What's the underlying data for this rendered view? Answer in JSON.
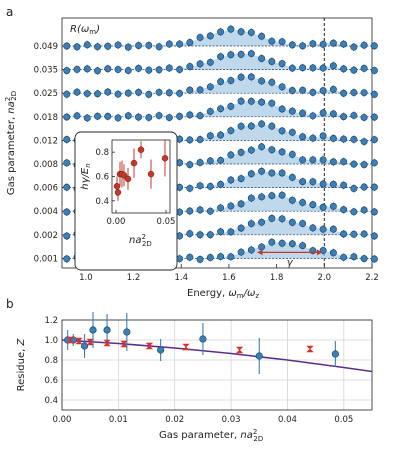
{
  "chart_data": [
    {
      "type": "line",
      "panel_label": "a",
      "xlabel_text": "Energy, ",
      "xlabel_math": "ωm/ωz",
      "ylabel": "Gas parameter, na²2D",
      "xlim": [
        0.9,
        2.2
      ],
      "xticks": [
        "1.0",
        "1.2",
        "1.4",
        "1.6",
        "1.8",
        "2.0",
        "2.2"
      ],
      "series_label": "R(ωm)",
      "offset_labels": [
        "0.049",
        "0.035",
        "0.025",
        "0.018",
        "0.012",
        "0.008",
        "0.006",
        "0.004",
        "0.002",
        "0.001"
      ],
      "peak_centers": [
        1.62,
        1.65,
        1.67,
        1.7,
        1.72,
        1.74,
        1.76,
        1.78,
        1.8,
        1.82
      ],
      "vline_x": 2.0,
      "gamma_label": "γ",
      "gamma_x": [
        1.72,
        1.99
      ],
      "colors": {
        "points": "#3b7fb4",
        "fill": "#a9cbe6",
        "edge": "#1f3f66",
        "gamma": "#c0392b"
      }
    },
    {
      "type": "scatter",
      "inset": true,
      "ylabel": "hγ/En",
      "xlabel": "na²2D",
      "xticks": [
        "0.00",
        "0.05"
      ],
      "yticks": [
        "0.4",
        "0.6",
        "0.8"
      ],
      "xlim": [
        -0.004,
        0.054
      ],
      "ylim": [
        0.3,
        0.9
      ],
      "points": [
        {
          "x": 0.001,
          "y": 0.52,
          "err": 0.08
        },
        {
          "x": 0.002,
          "y": 0.47,
          "err": 0.07
        },
        {
          "x": 0.004,
          "y": 0.62,
          "err": 0.1
        },
        {
          "x": 0.006,
          "y": 0.62,
          "err": 0.11
        },
        {
          "x": 0.008,
          "y": 0.61,
          "err": 0.09
        },
        {
          "x": 0.012,
          "y": 0.58,
          "err": 0.09
        },
        {
          "x": 0.018,
          "y": 0.71,
          "err": 0.12
        },
        {
          "x": 0.025,
          "y": 0.82,
          "err": 0.07
        },
        {
          "x": 0.035,
          "y": 0.62,
          "err": 0.12
        },
        {
          "x": 0.049,
          "y": 0.75,
          "err": 0.15
        }
      ],
      "color": "#c0392b"
    },
    {
      "type": "scatter",
      "panel_label": "b",
      "xlabel": "Gas parameter, na²2D",
      "ylabel": "Residue, Z",
      "xlim": [
        0,
        0.055
      ],
      "ylim": [
        0.3,
        1.2
      ],
      "xticks": [
        "0.00",
        "0.01",
        "0.02",
        "0.03",
        "0.04",
        "0.05"
      ],
      "yticks": [
        "0.4",
        "0.6",
        "0.8",
        "1.0",
        "1.2"
      ],
      "grid": true,
      "series": [
        {
          "name": "data",
          "color": "#3b7fb4",
          "points": [
            {
              "x": 0.001,
              "y": 1.0,
              "err": 0.1
            },
            {
              "x": 0.002,
              "y": 1.0,
              "err": 0.06
            },
            {
              "x": 0.004,
              "y": 0.94,
              "err": 0.12
            },
            {
              "x": 0.0055,
              "y": 1.1,
              "err": 0.18
            },
            {
              "x": 0.008,
              "y": 1.1,
              "err": 0.16
            },
            {
              "x": 0.0115,
              "y": 1.08,
              "err": 0.19
            },
            {
              "x": 0.0175,
              "y": 0.9,
              "err": 0.11
            },
            {
              "x": 0.025,
              "y": 1.01,
              "err": 0.16
            },
            {
              "x": 0.035,
              "y": 0.84,
              "err": 0.18
            },
            {
              "x": 0.0485,
              "y": 0.86,
              "err": 0.13
            }
          ]
        },
        {
          "name": "crosses",
          "color": "#d9312b",
          "points": [
            {
              "x": 0.0015,
              "y": 1.0
            },
            {
              "x": 0.003,
              "y": 0.99
            },
            {
              "x": 0.005,
              "y": 0.98
            },
            {
              "x": 0.008,
              "y": 0.97
            },
            {
              "x": 0.011,
              "y": 0.96
            },
            {
              "x": 0.0155,
              "y": 0.94
            },
            {
              "x": 0.022,
              "y": 0.93
            },
            {
              "x": 0.0315,
              "y": 0.9
            },
            {
              "x": 0.044,
              "y": 0.91
            }
          ]
        },
        {
          "name": "theory",
          "color": "#5b2d8c",
          "line": {
            "x": [
              0,
              0.01,
              0.02,
              0.03,
              0.04,
              0.05,
              0.055
            ],
            "y": [
              1.0,
              0.965,
              0.92,
              0.865,
              0.8,
              0.725,
              0.685
            ]
          }
        }
      ]
    }
  ]
}
